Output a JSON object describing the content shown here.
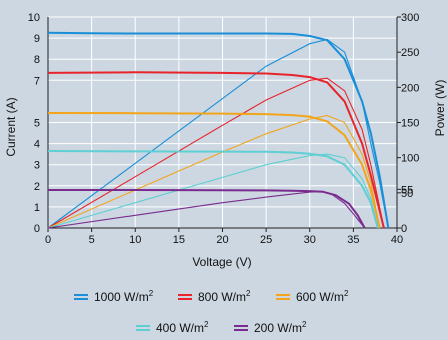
{
  "chart_data": {
    "type": "line",
    "xlabel": "Voltage (V)",
    "ylabel_left": "Current (A)",
    "ylabel_right": "Power (W)",
    "xlim": [
      0,
      40
    ],
    "ylim_left": [
      0,
      10
    ],
    "ylim_right": [
      0,
      300
    ],
    "x_ticks": [
      0,
      5,
      10,
      15,
      20,
      25,
      30,
      35,
      40
    ],
    "y_left_ticks": [
      0,
      1,
      2,
      3,
      4,
      5,
      7,
      8,
      9,
      10
    ],
    "y_right_ticks": [
      0,
      50,
      55,
      100,
      150,
      200,
      250,
      300
    ],
    "legend_unit": "W/m",
    "legend_sup": "2",
    "series": [
      {
        "name": "1000",
        "color": "#1a8fd8",
        "iv": [
          [
            0,
            9.25
          ],
          [
            5,
            9.23
          ],
          [
            10,
            9.22
          ],
          [
            15,
            9.22
          ],
          [
            20,
            9.22
          ],
          [
            25,
            9.22
          ],
          [
            28,
            9.2
          ],
          [
            30,
            9.1
          ],
          [
            32,
            8.9
          ],
          [
            34,
            8.0
          ],
          [
            36,
            6.0
          ],
          [
            37,
            4.5
          ],
          [
            38,
            2.5
          ],
          [
            39,
            0
          ]
        ],
        "pv": [
          [
            0,
            0
          ],
          [
            10,
            92
          ],
          [
            20,
            184
          ],
          [
            25,
            230
          ],
          [
            30,
            262
          ],
          [
            32,
            268
          ],
          [
            34,
            250
          ],
          [
            36,
            180
          ],
          [
            37,
            120
          ],
          [
            38,
            65
          ],
          [
            39,
            0
          ]
        ]
      },
      {
        "name": "800",
        "color": "#e8242a",
        "iv": [
          [
            0,
            7.35
          ],
          [
            10,
            7.38
          ],
          [
            20,
            7.35
          ],
          [
            25,
            7.32
          ],
          [
            28,
            7.25
          ],
          [
            30,
            7.15
          ],
          [
            32,
            6.9
          ],
          [
            34,
            6.0
          ],
          [
            36,
            4.0
          ],
          [
            37,
            2.5
          ],
          [
            38.5,
            0
          ]
        ],
        "pv": [
          [
            0,
            0
          ],
          [
            10,
            73
          ],
          [
            20,
            146
          ],
          [
            25,
            182
          ],
          [
            30,
            210
          ],
          [
            32,
            213
          ],
          [
            34,
            195
          ],
          [
            36,
            140
          ],
          [
            37,
            90
          ],
          [
            38.5,
            0
          ]
        ]
      },
      {
        "name": "600",
        "color": "#f2a51a",
        "iv": [
          [
            0,
            5.45
          ],
          [
            10,
            5.44
          ],
          [
            20,
            5.42
          ],
          [
            25,
            5.4
          ],
          [
            28,
            5.35
          ],
          [
            30,
            5.28
          ],
          [
            32,
            5.05
          ],
          [
            34,
            4.4
          ],
          [
            36,
            3.0
          ],
          [
            37,
            1.8
          ],
          [
            38,
            0
          ]
        ],
        "pv": [
          [
            0,
            0
          ],
          [
            10,
            54
          ],
          [
            20,
            108
          ],
          [
            25,
            134
          ],
          [
            30,
            155
          ],
          [
            32,
            160
          ],
          [
            34,
            150
          ],
          [
            36,
            105
          ],
          [
            37,
            65
          ],
          [
            38,
            0
          ]
        ]
      },
      {
        "name": "400",
        "color": "#5ecfd2",
        "iv": [
          [
            0,
            3.65
          ],
          [
            10,
            3.63
          ],
          [
            20,
            3.62
          ],
          [
            25,
            3.61
          ],
          [
            28,
            3.58
          ],
          [
            30,
            3.52
          ],
          [
            32,
            3.4
          ],
          [
            34,
            3.0
          ],
          [
            36,
            2.0
          ],
          [
            37,
            1.2
          ],
          [
            37.8,
            0
          ]
        ],
        "pv": [
          [
            0,
            0
          ],
          [
            10,
            36
          ],
          [
            20,
            72
          ],
          [
            25,
            90
          ],
          [
            30,
            103
          ],
          [
            32,
            105
          ],
          [
            34,
            100
          ],
          [
            36,
            70
          ],
          [
            37,
            42
          ],
          [
            37.8,
            0
          ]
        ]
      },
      {
        "name": "200",
        "color": "#7a2b8e",
        "iv": [
          [
            0,
            1.8
          ],
          [
            10,
            1.8
          ],
          [
            20,
            1.79
          ],
          [
            25,
            1.78
          ],
          [
            28,
            1.77
          ],
          [
            30,
            1.75
          ],
          [
            31.5,
            1.72
          ],
          [
            33,
            1.55
          ],
          [
            34.5,
            1.15
          ],
          [
            35.5,
            0.6
          ],
          [
            36.3,
            0
          ]
        ],
        "pv": [
          [
            0,
            0
          ],
          [
            10,
            18
          ],
          [
            20,
            36
          ],
          [
            25,
            44
          ],
          [
            30,
            51
          ],
          [
            31.5,
            52
          ],
          [
            32.5,
            48
          ],
          [
            34,
            35
          ],
          [
            35,
            20
          ],
          [
            36.3,
            0
          ]
        ]
      }
    ]
  }
}
